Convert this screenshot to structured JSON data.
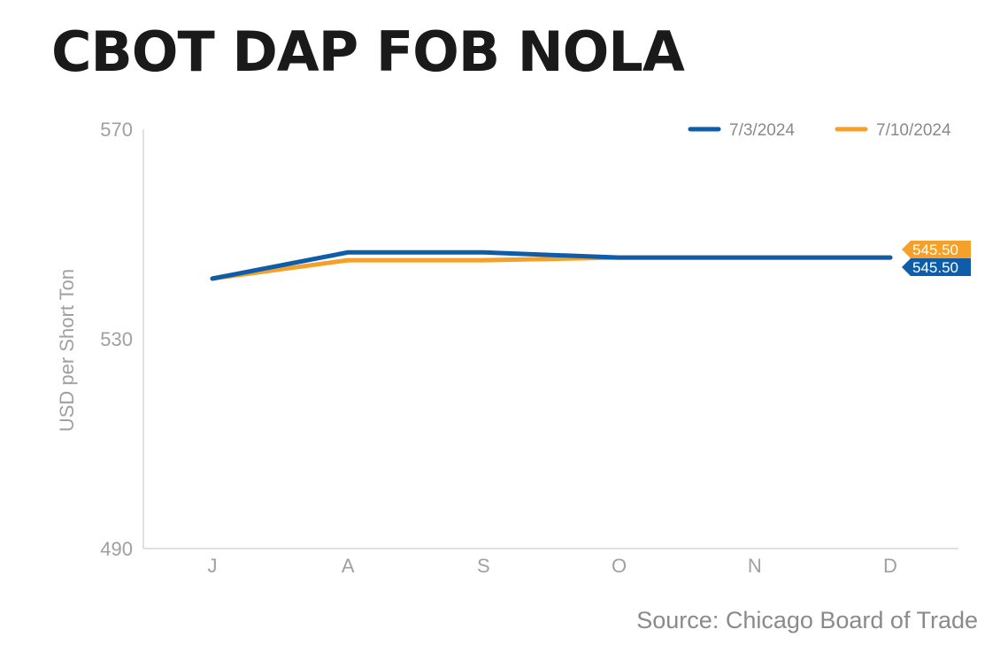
{
  "title": "CBOT DAP FOB NOLA",
  "source": "Source: Chicago Board of Trade",
  "chart_data": {
    "type": "line",
    "title": "CBOT DAP FOB NOLA",
    "ylabel": "USD per Short Ton",
    "xlabel": "",
    "categories": [
      "J",
      "A",
      "S",
      "O",
      "N",
      "D"
    ],
    "ylim": [
      490,
      570
    ],
    "yticks": [
      570,
      530,
      490
    ],
    "grid": false,
    "legend_position": "top-right",
    "series": [
      {
        "name": "7/3/2024",
        "color": "#0f5ca8",
        "values": [
          541.5,
          546.5,
          546.5,
          545.5,
          545.5,
          545.5
        ],
        "end_label": "545.50"
      },
      {
        "name": "7/10/2024",
        "color": "#f5a02a",
        "values": [
          541.5,
          545.0,
          545.0,
          545.5,
          545.5,
          545.5
        ],
        "end_label": "545.50"
      }
    ]
  }
}
